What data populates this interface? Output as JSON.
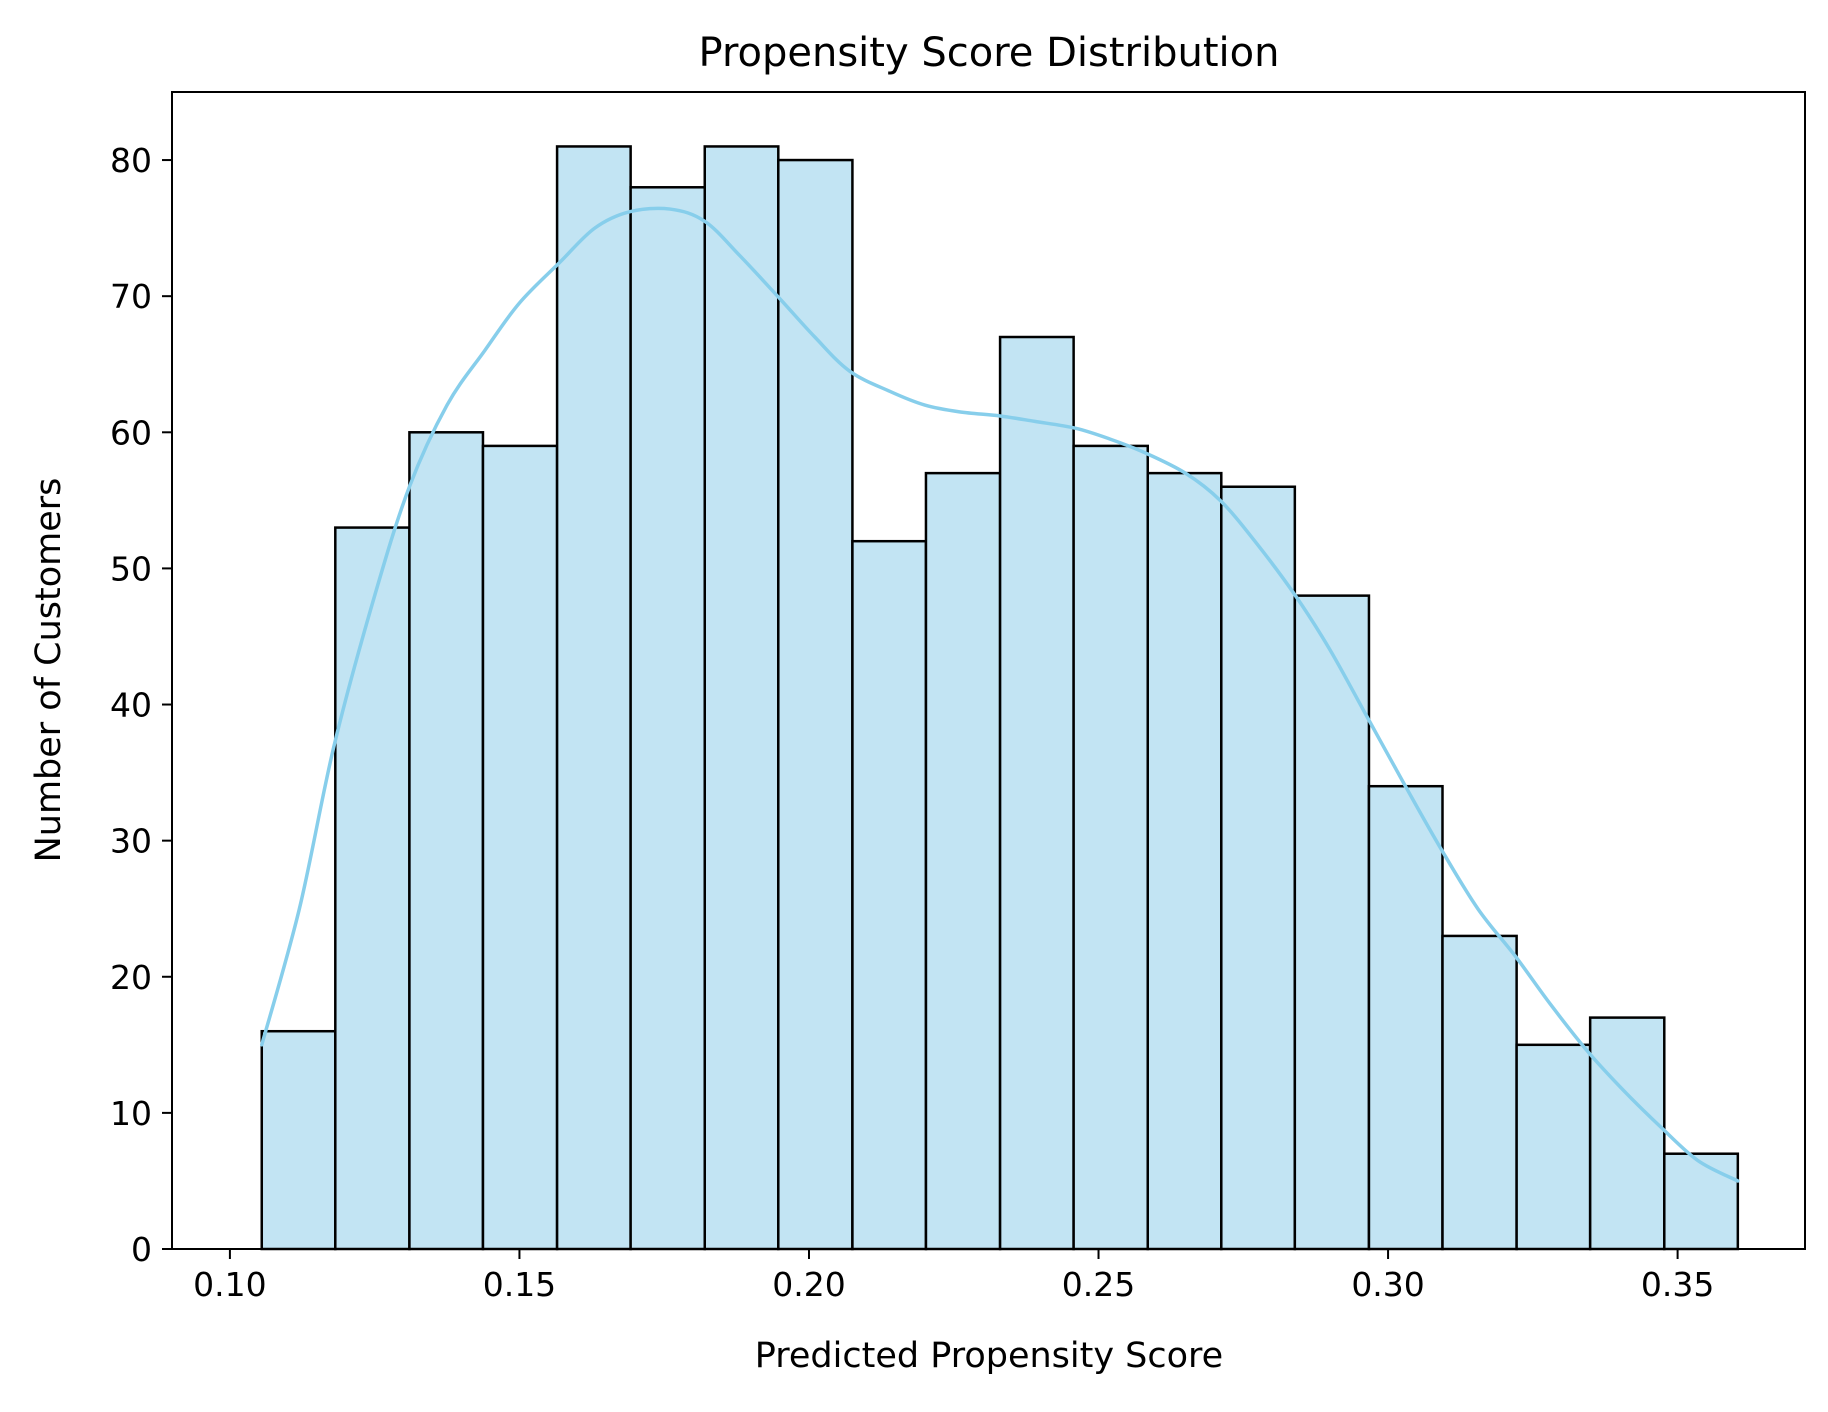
{
  "chart_data": {
    "type": "bar",
    "title": "Propensity Score Distribution",
    "xlabel": "Predicted Propensity Score",
    "ylabel": "Number of Customers",
    "xlim": [
      0.09,
      0.372
    ],
    "ylim": [
      0,
      85
    ],
    "x_ticks": [
      0.1,
      0.15,
      0.2,
      0.25,
      0.3,
      0.35
    ],
    "x_tick_labels": [
      "0.10",
      "0.15",
      "0.20",
      "0.25",
      "0.30",
      "0.35"
    ],
    "y_ticks": [
      0,
      10,
      20,
      30,
      40,
      50,
      60,
      70,
      80
    ],
    "y_tick_labels": [
      "0",
      "10",
      "20",
      "30",
      "40",
      "50",
      "60",
      "70",
      "80"
    ],
    "bin_edges": [
      0.1055,
      0.1182,
      0.131,
      0.1437,
      0.1565,
      0.1692,
      0.182,
      0.1947,
      0.2075,
      0.2202,
      0.233,
      0.2457,
      0.2585,
      0.2712,
      0.2839,
      0.2967,
      0.3094,
      0.3222,
      0.3349,
      0.3477,
      0.3604
    ],
    "values": [
      16,
      53,
      60,
      59,
      81,
      78,
      81,
      80,
      52,
      57,
      67,
      59,
      57,
      56,
      48,
      34,
      23,
      15,
      17,
      7
    ],
    "kde": {
      "x": [
        0.1055,
        0.112,
        0.118,
        0.125,
        0.131,
        0.1375,
        0.144,
        0.15,
        0.157,
        0.163,
        0.169,
        0.176,
        0.182,
        0.188,
        0.195,
        0.201,
        0.207,
        0.214,
        0.22,
        0.226,
        0.233,
        0.239,
        0.246,
        0.252,
        0.258,
        0.265,
        0.271,
        0.277,
        0.284,
        0.29,
        0.2965,
        0.303,
        0.309,
        0.3155,
        0.322,
        0.328,
        0.3345,
        0.341,
        0.347,
        0.3535,
        0.3604
      ],
      "y": [
        15,
        25,
        37,
        48,
        56,
        62,
        66,
        69.5,
        72.5,
        75,
        76.2,
        76.4,
        75.5,
        73,
        69.8,
        67,
        64.5,
        63,
        62,
        61.5,
        61.2,
        60.8,
        60.3,
        59.5,
        58.5,
        57,
        55,
        52,
        48,
        44,
        39,
        34,
        29.5,
        25,
        21.5,
        18,
        14.5,
        11.5,
        9,
        6.5,
        5
      ]
    },
    "colors": {
      "bar_fill": "#c2e4f3",
      "bar_edge": "#000000",
      "kde_line": "#87ceeb"
    },
    "grid": false,
    "legend": "none"
  }
}
